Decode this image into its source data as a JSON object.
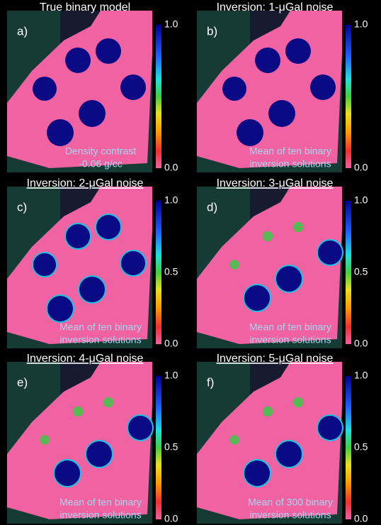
{
  "panels": [
    {
      "title": "True binary model",
      "letter": "a)",
      "caption": [
        "Density contrast",
        "-0.06 g/cc"
      ],
      "colorbar_ticks": [
        "1.0",
        "0.0"
      ]
    },
    {
      "title": "Inversion: 1-μGal noise",
      "letter": "b)",
      "caption": [
        "Mean of ten binary",
        "inversion solutions"
      ],
      "colorbar_ticks": [
        "1.0",
        "0.0"
      ]
    },
    {
      "title": "Inversion: 2-μGal noise",
      "letter": "c)",
      "caption": [
        "Mean of ten binary",
        "inversion solutions"
      ],
      "colorbar_ticks": [
        "1.0",
        "0.5",
        "0.0"
      ]
    },
    {
      "title": "Inversion: 3-μGal noise",
      "letter": "d)",
      "caption": [
        "Mean of ten binary",
        "inversion solutions"
      ],
      "colorbar_ticks": [
        "1.0",
        "0.5",
        "0.0"
      ]
    },
    {
      "title": "Inversion: 4-μGal noise",
      "letter": "e)",
      "caption": [
        "Mean of ten binary",
        "inversion solutions"
      ],
      "colorbar_ticks": [
        "1.0",
        "0.5",
        "0.0"
      ]
    },
    {
      "title": "Inversion: 5-μGal noise",
      "letter": "f)",
      "caption": [
        "Mean of 300 binary",
        "inversion solutions"
      ],
      "colorbar_ticks": [
        "1.0",
        "0.5",
        "0.0"
      ]
    }
  ]
}
